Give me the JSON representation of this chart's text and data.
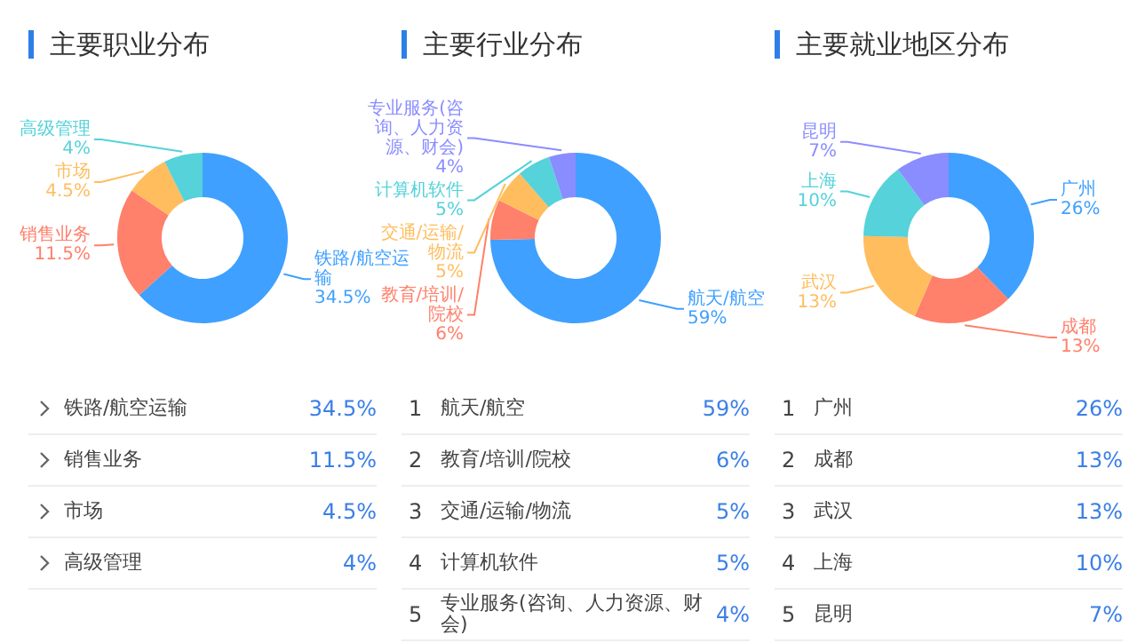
{
  "chart_data": [
    {
      "type": "donut",
      "title": "主要职业分布",
      "categories": [
        "铁路/航空运输",
        "销售业务",
        "市场",
        "高级管理"
      ],
      "values": [
        34.5,
        11.5,
        4.5,
        4
      ],
      "value_labels": [
        "34.5%",
        "11.5%",
        "4.5%",
        "4%"
      ],
      "colors": [
        "#3fa0ff",
        "#ff806b",
        "#ffbd5e",
        "#55d2da"
      ],
      "legend": false
    },
    {
      "type": "donut",
      "title": "主要行业分布",
      "categories": [
        "航天/航空",
        "教育/培训/院校",
        "交通/运输/物流",
        "计算机软件",
        "专业服务(咨询、人力资源、财会)"
      ],
      "values": [
        59,
        6,
        5,
        5,
        4
      ],
      "value_labels": [
        "59%",
        "6%",
        "5%",
        "5%",
        "4%"
      ],
      "colors": [
        "#3fa0ff",
        "#ff806b",
        "#ffbd5e",
        "#55d2da",
        "#8a8dff"
      ],
      "annotations": [
        "1",
        "2",
        "3",
        "4",
        "5"
      ],
      "legend": false
    },
    {
      "type": "donut",
      "title": "主要就业地区分布",
      "categories": [
        "广州",
        "成都",
        "武汉",
        "上海",
        "昆明"
      ],
      "values": [
        26,
        13,
        13,
        10,
        7
      ],
      "value_labels": [
        "26%",
        "13%",
        "13%",
        "10%",
        "7%"
      ],
      "colors": [
        "#3fa0ff",
        "#ff806b",
        "#ffbd5e",
        "#55d2da",
        "#8a8dff"
      ],
      "annotations": [
        "1",
        "2",
        "3",
        "4",
        "5"
      ],
      "legend": false
    }
  ]
}
